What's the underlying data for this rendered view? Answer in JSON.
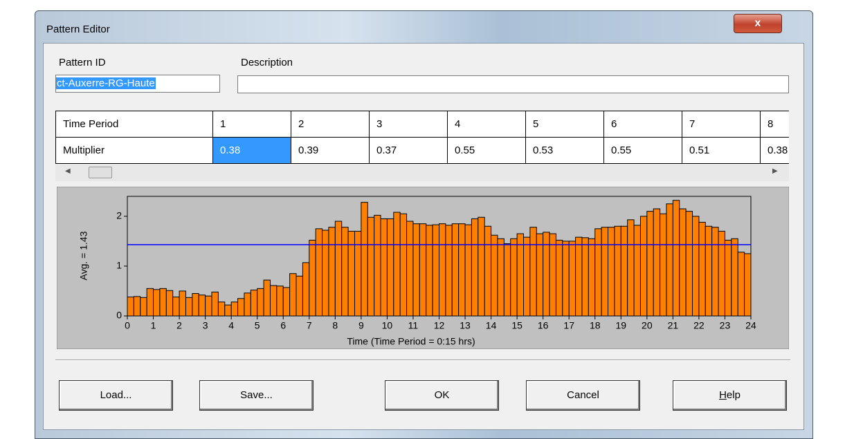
{
  "window": {
    "title": "Pattern Editor"
  },
  "form": {
    "pattern_id_label": "Pattern ID",
    "pattern_id": "ct-Auxerre-RG-Haute",
    "description_label": "Description"
  },
  "table": {
    "row_headers": [
      "Time Period",
      "Multiplier"
    ],
    "periods": [
      1,
      2,
      3,
      4,
      5,
      6,
      7,
      8
    ]
  },
  "chart_data": {
    "type": "bar",
    "ylabel": "Avg. = 1.43",
    "xlabel": "Time (Time Period = 0:15  hrs)",
    "average": 1.43,
    "color": "#ff8000",
    "average_color": "#0000ff",
    "values": [
      0.38,
      0.39,
      0.37,
      0.55,
      0.53,
      0.55,
      0.51,
      0.38,
      0.5,
      0.37,
      0.45,
      0.42,
      0.4,
      0.48,
      0.28,
      0.22,
      0.28,
      0.35,
      0.46,
      0.52,
      0.55,
      0.72,
      0.61,
      0.6,
      0.57,
      0.85,
      0.8,
      1.07,
      1.52,
      1.75,
      1.72,
      1.78,
      1.9,
      1.78,
      1.7,
      1.7,
      2.28,
      1.98,
      2.02,
      1.95,
      1.95,
      2.08,
      2.05,
      1.9,
      1.85,
      1.85,
      1.82,
      1.83,
      1.85,
      1.82,
      1.85,
      1.85,
      1.83,
      1.95,
      1.98,
      1.8,
      1.62,
      1.55,
      1.45,
      1.55,
      1.65,
      1.58,
      1.78,
      1.65,
      1.68,
      1.65,
      1.52,
      1.5,
      1.5,
      1.58,
      1.57,
      1.55,
      1.75,
      1.78,
      1.78,
      1.8,
      1.8,
      1.93,
      1.82,
      2.0,
      2.1,
      2.15,
      2.05,
      2.25,
      2.32,
      2.15,
      2.1,
      2.0,
      1.88,
      1.8,
      1.78,
      1.7,
      1.52,
      1.55,
      1.28,
      1.25
    ],
    "xlim": [
      0,
      24
    ],
    "xticks": [
      0,
      1,
      2,
      3,
      4,
      5,
      6,
      7,
      8,
      9,
      10,
      11,
      12,
      13,
      14,
      15,
      16,
      17,
      18,
      19,
      20,
      21,
      22,
      23,
      24
    ],
    "ylim": [
      0,
      2.4
    ],
    "yticks": [
      0,
      1,
      2
    ]
  },
  "buttons": [
    "Load...",
    "Save...",
    "OK",
    "Cancel",
    "Help"
  ]
}
